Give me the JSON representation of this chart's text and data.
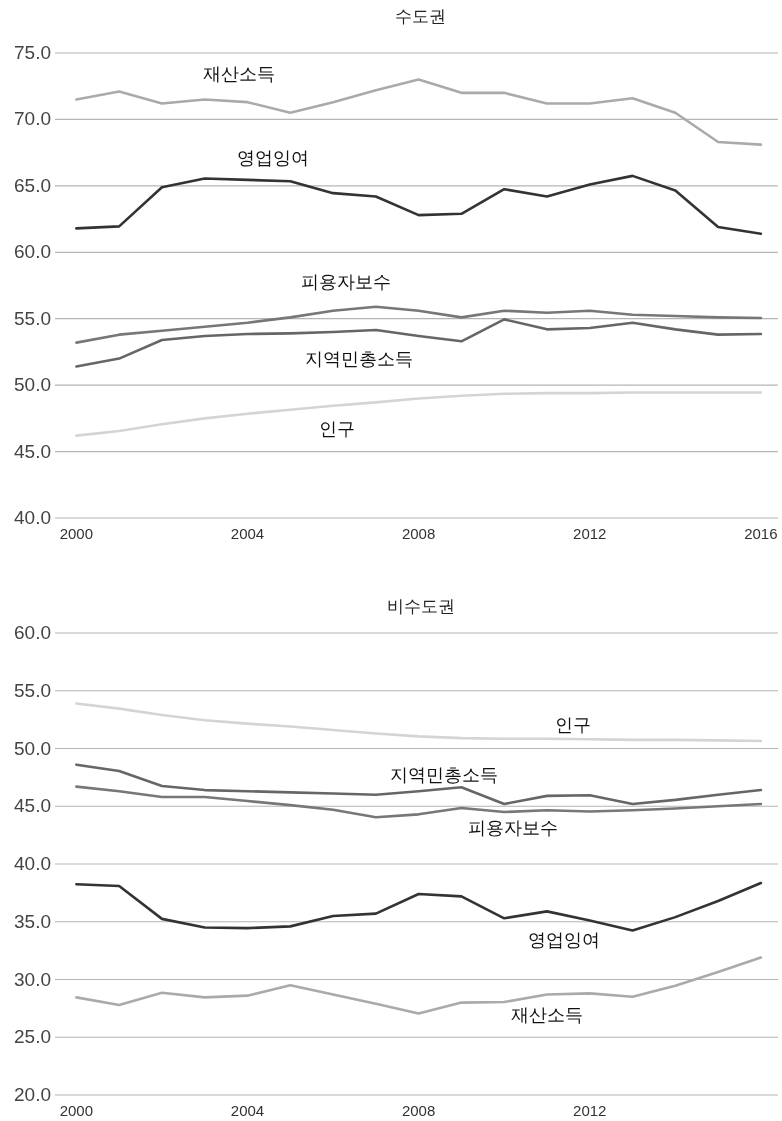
{
  "chart_data": [
    {
      "type": "line",
      "title": "수도권",
      "x": [
        2000,
        2001,
        2002,
        2003,
        2004,
        2005,
        2006,
        2007,
        2008,
        2009,
        2010,
        2011,
        2012,
        2013,
        2014,
        2015,
        2016
      ],
      "xlim": [
        1999.5,
        2016.4
      ],
      "xticks": [
        2000,
        2004,
        2008,
        2012,
        2016
      ],
      "ylim": [
        40,
        75
      ],
      "yticks": [
        {
          "value": 40,
          "label": "40.0"
        },
        {
          "value": 45,
          "label": "45.0"
        },
        {
          "value": 50,
          "label": "50.0"
        },
        {
          "value": 55,
          "label": "55.0"
        },
        {
          "value": 60,
          "label": "60.0"
        },
        {
          "value": 65,
          "label": "65.0"
        },
        {
          "value": 70,
          "label": "70.0"
        },
        {
          "value": 75,
          "label": "75.0"
        }
      ],
      "grid": "y",
      "series": [
        {
          "name": "재산소득",
          "color": "#aaaaaa",
          "values": [
            71.5,
            72.1,
            71.2,
            71.5,
            71.3,
            70.5,
            71.3,
            72.2,
            73.0,
            72.0,
            72.0,
            71.2,
            71.2,
            71.6,
            70.5,
            68.3,
            68.1
          ]
        },
        {
          "name": "영업잉여",
          "color": "#333333",
          "values": [
            61.8,
            61.95,
            64.9,
            65.55,
            65.45,
            65.35,
            64.45,
            64.2,
            62.8,
            62.9,
            64.75,
            64.2,
            65.1,
            65.75,
            64.65,
            61.9,
            61.4
          ]
        },
        {
          "name": "피용자보수",
          "color": "#777777",
          "values": [
            53.2,
            53.8,
            54.1,
            54.4,
            54.7,
            55.1,
            55.6,
            55.9,
            55.6,
            55.1,
            55.6,
            55.45,
            55.6,
            55.3,
            55.2,
            55.1,
            55.05
          ]
        },
        {
          "name": "지역민총소득",
          "color": "#666666",
          "values": [
            51.4,
            52.0,
            53.4,
            53.7,
            53.85,
            53.9,
            54.0,
            54.15,
            53.7,
            53.3,
            54.95,
            54.2,
            54.3,
            54.7,
            54.2,
            53.8,
            53.85
          ]
        },
        {
          "name": "인구",
          "color": "#d4d4d4",
          "values": [
            46.2,
            46.55,
            47.05,
            47.5,
            47.85,
            48.15,
            48.45,
            48.7,
            49.0,
            49.2,
            49.35,
            49.4,
            49.4,
            49.45,
            49.45,
            49.45,
            49.45
          ]
        }
      ]
    },
    {
      "type": "line",
      "title": "비수도권",
      "x": [
        2000,
        2001,
        2002,
        2003,
        2004,
        2005,
        2006,
        2007,
        2008,
        2009,
        2010,
        2011,
        2012,
        2013,
        2014,
        2015,
        2016
      ],
      "xlim": [
        1999.5,
        2016.4
      ],
      "xticks": [
        2000,
        2004,
        2008,
        2012
      ],
      "ylim": [
        20,
        60
      ],
      "yticks": [
        {
          "value": 20,
          "label": "20.0"
        },
        {
          "value": 25,
          "label": "25.0"
        },
        {
          "value": 30,
          "label": "30.0"
        },
        {
          "value": 35,
          "label": "35.0"
        },
        {
          "value": 40,
          "label": "40.0"
        },
        {
          "value": 45,
          "label": "45.0"
        },
        {
          "value": 50,
          "label": "50.0"
        },
        {
          "value": 55,
          "label": "55.0"
        },
        {
          "value": 60,
          "label": "60.0"
        }
      ],
      "grid": "y",
      "series": [
        {
          "name": "인구",
          "color": "#d4d4d4",
          "values": [
            53.9,
            53.45,
            52.9,
            52.45,
            52.15,
            51.9,
            51.6,
            51.3,
            51.05,
            50.9,
            50.85,
            50.85,
            50.8,
            50.75,
            50.75,
            50.7,
            50.65
          ]
        },
        {
          "name": "지역민총소득",
          "color": "#666666",
          "values": [
            48.6,
            48.05,
            46.75,
            46.4,
            46.3,
            46.2,
            46.1,
            46.0,
            46.3,
            46.65,
            45.2,
            45.9,
            45.95,
            45.2,
            45.55,
            46.0,
            46.4
          ]
        },
        {
          "name": "피용자보수",
          "color": "#777777",
          "values": [
            46.7,
            46.3,
            45.8,
            45.8,
            45.45,
            45.1,
            44.7,
            44.05,
            44.3,
            44.85,
            44.5,
            44.65,
            44.55,
            44.65,
            44.8,
            45.0,
            45.2
          ]
        },
        {
          "name": "영업잉여",
          "color": "#333333",
          "values": [
            38.25,
            38.1,
            35.25,
            34.5,
            34.45,
            34.6,
            35.5,
            35.7,
            37.4,
            37.2,
            35.3,
            35.9,
            35.1,
            34.25,
            35.4,
            36.8,
            38.35
          ]
        },
        {
          "name": "재산소득",
          "color": "#aaaaaa",
          "values": [
            28.45,
            27.8,
            28.85,
            28.45,
            28.6,
            29.5,
            28.7,
            27.9,
            27.05,
            28.0,
            28.05,
            28.7,
            28.8,
            28.5,
            29.45,
            30.65,
            31.9
          ]
        }
      ]
    }
  ]
}
